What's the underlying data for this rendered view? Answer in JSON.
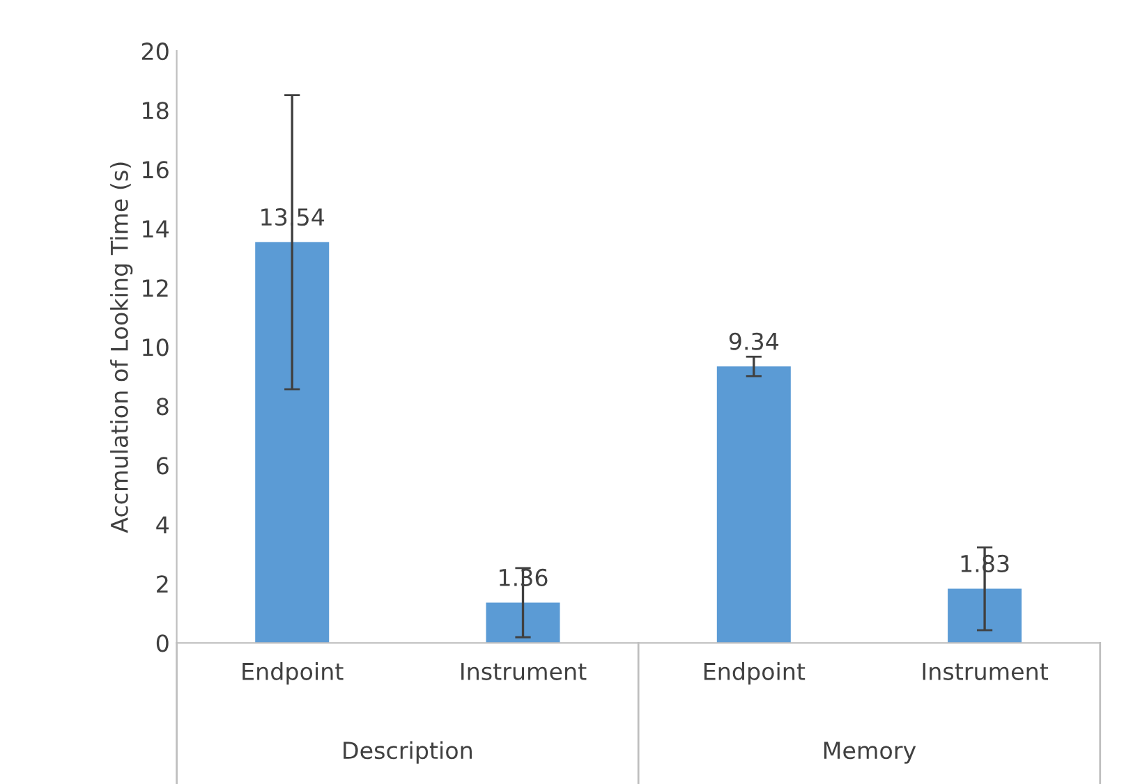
{
  "chart_data": {
    "type": "bar",
    "ylabel": "Accmulation of Looking Time (s)",
    "categories": [
      "Endpoint",
      "Instrument",
      "Endpoint",
      "Instrument"
    ],
    "values": [
      13.54,
      1.36,
      9.34,
      1.83
    ],
    "errors": [
      4.97,
      1.17,
      0.33,
      1.4
    ],
    "color": "#5b9bd5",
    "data_labels": true,
    "ylim": [
      0,
      20
    ],
    "yticks": [
      0,
      2,
      4,
      6,
      8,
      10,
      12,
      14,
      16,
      18,
      20
    ],
    "annotations": [
      "Description",
      "Memory"
    ]
  }
}
